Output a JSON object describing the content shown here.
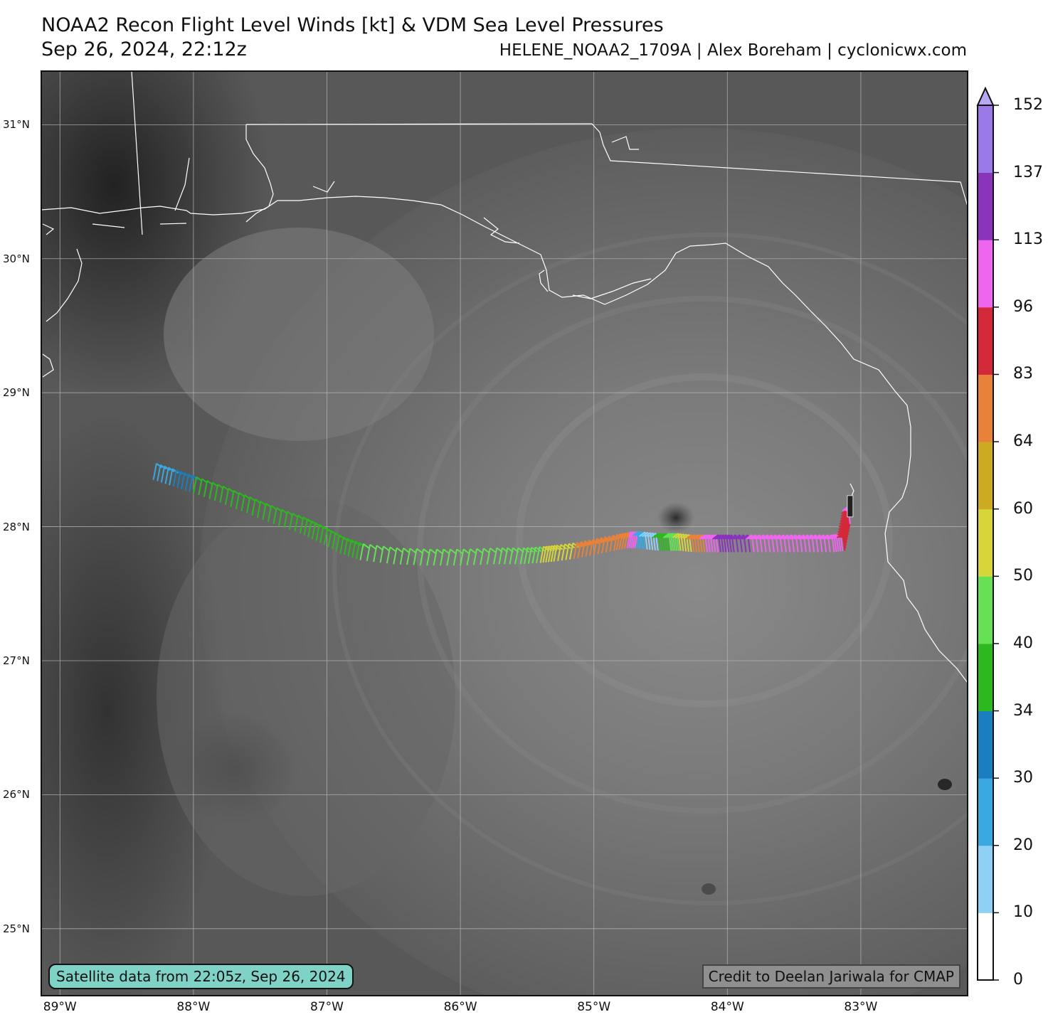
{
  "header": {
    "title": "NOAA2 Recon Flight Level Winds [kt] & VDM Sea Level Pressures",
    "subtitle": "Sep 26, 2024, 22:12z",
    "credit": "HELENE_NOAA2_1709A | Alex Boreham | cyclonicwx.com"
  },
  "badges": {
    "satellite": "Satellite data from 22:05z, Sep 26, 2024",
    "cmap": "Credit to Deelan Jariwala for CMAP"
  },
  "map": {
    "lat_range": [
      24.5,
      31.4
    ],
    "lon_range": [
      -89.14,
      -82.2
    ],
    "lat_ticks": [
      {
        "value": 31,
        "label": "31°N"
      },
      {
        "value": 30,
        "label": "30°N"
      },
      {
        "value": 29,
        "label": "29°N"
      },
      {
        "value": 28,
        "label": "28°N"
      },
      {
        "value": 27,
        "label": "27°N"
      },
      {
        "value": 26,
        "label": "26°N"
      },
      {
        "value": 25,
        "label": "25°N"
      }
    ],
    "lon_ticks": [
      {
        "value": -89,
        "label": "89°W"
      },
      {
        "value": -88,
        "label": "88°W"
      },
      {
        "value": -87,
        "label": "87°W"
      },
      {
        "value": -86,
        "label": "86°W"
      },
      {
        "value": -85,
        "label": "85°W"
      },
      {
        "value": -84,
        "label": "84°W"
      },
      {
        "value": -83,
        "label": "83°W"
      }
    ],
    "hurricane_center": {
      "lat": 27.8,
      "lon": -84.6
    }
  },
  "colorbar": {
    "unit": "kt",
    "levels": [
      {
        "value": 0,
        "label": "0"
      },
      {
        "value": 10,
        "label": "10"
      },
      {
        "value": 20,
        "label": "20"
      },
      {
        "value": 30,
        "label": "30"
      },
      {
        "value": 34,
        "label": "34"
      },
      {
        "value": 40,
        "label": "40"
      },
      {
        "value": 50,
        "label": "50"
      },
      {
        "value": 60,
        "label": "60"
      },
      {
        "value": 64,
        "label": "64"
      },
      {
        "value": 83,
        "label": "83"
      },
      {
        "value": 96,
        "label": "96"
      },
      {
        "value": 113,
        "label": "113"
      },
      {
        "value": 137,
        "label": "137"
      },
      {
        "value": 152,
        "label": "152"
      }
    ],
    "colors": [
      "#ffffff",
      "#8fd1f5",
      "#3aa8e0",
      "#1b7fbf",
      "#2cb81e",
      "#66e055",
      "#d6d63a",
      "#ccaa22",
      "#e8823a",
      "#d4293a",
      "#ee66ee",
      "#8a33bb",
      "#9a7ae6"
    ],
    "extend_color": "#b8a8f2"
  },
  "flight_track": [
    {
      "lon": -88.3,
      "lat": 28.35,
      "wind": 28
    },
    {
      "lon": -88.15,
      "lat": 28.3,
      "wind": 31
    },
    {
      "lon": -88.0,
      "lat": 28.25,
      "wind": 36
    },
    {
      "lon": -87.8,
      "lat": 28.18,
      "wind": 37
    },
    {
      "lon": -87.6,
      "lat": 28.1,
      "wind": 37
    },
    {
      "lon": -87.4,
      "lat": 28.02,
      "wind": 38
    },
    {
      "lon": -87.2,
      "lat": 27.95,
      "wind": 38
    },
    {
      "lon": -87.05,
      "lat": 27.88,
      "wind": 38
    },
    {
      "lon": -86.9,
      "lat": 27.8,
      "wind": 38
    },
    {
      "lon": -86.75,
      "lat": 27.75,
      "wind": 42
    },
    {
      "lon": -86.5,
      "lat": 27.72,
      "wind": 44
    },
    {
      "lon": -86.25,
      "lat": 27.71,
      "wind": 44
    },
    {
      "lon": -86.0,
      "lat": 27.71,
      "wind": 45
    },
    {
      "lon": -85.75,
      "lat": 27.72,
      "wind": 45
    },
    {
      "lon": -85.55,
      "lat": 27.72,
      "wind": 46
    },
    {
      "lon": -85.4,
      "lat": 27.73,
      "wind": 55
    },
    {
      "lon": -85.3,
      "lat": 27.74,
      "wind": 52
    },
    {
      "lon": -85.15,
      "lat": 27.76,
      "wind": 70
    },
    {
      "lon": -85.0,
      "lat": 27.79,
      "wind": 72
    },
    {
      "lon": -84.85,
      "lat": 27.82,
      "wind": 75
    },
    {
      "lon": -84.75,
      "lat": 27.84,
      "wind": 105
    },
    {
      "lon": -84.68,
      "lat": 27.84,
      "wind": 22
    },
    {
      "lon": -84.6,
      "lat": 27.83,
      "wind": 12
    },
    {
      "lon": -84.5,
      "lat": 27.82,
      "wind": 36
    },
    {
      "lon": -84.42,
      "lat": 27.82,
      "wind": 45
    },
    {
      "lon": -84.35,
      "lat": 27.82,
      "wind": 54
    },
    {
      "lon": -84.25,
      "lat": 27.81,
      "wind": 78
    },
    {
      "lon": -84.15,
      "lat": 27.81,
      "wind": 98
    },
    {
      "lon": -84.05,
      "lat": 27.81,
      "wind": 125
    },
    {
      "lon": -83.95,
      "lat": 27.81,
      "wind": 130
    },
    {
      "lon": -83.8,
      "lat": 27.81,
      "wind": 105
    },
    {
      "lon": -83.65,
      "lat": 27.81,
      "wind": 108
    },
    {
      "lon": -83.5,
      "lat": 27.81,
      "wind": 110
    },
    {
      "lon": -83.35,
      "lat": 27.81,
      "wind": 104
    },
    {
      "lon": -83.2,
      "lat": 27.81,
      "wind": 100
    },
    {
      "lon": -83.12,
      "lat": 27.82,
      "wind": 92
    },
    {
      "lon": -83.1,
      "lat": 27.92,
      "wind": 90
    },
    {
      "lon": -83.08,
      "lat": 28.02,
      "wind": 108
    }
  ]
}
